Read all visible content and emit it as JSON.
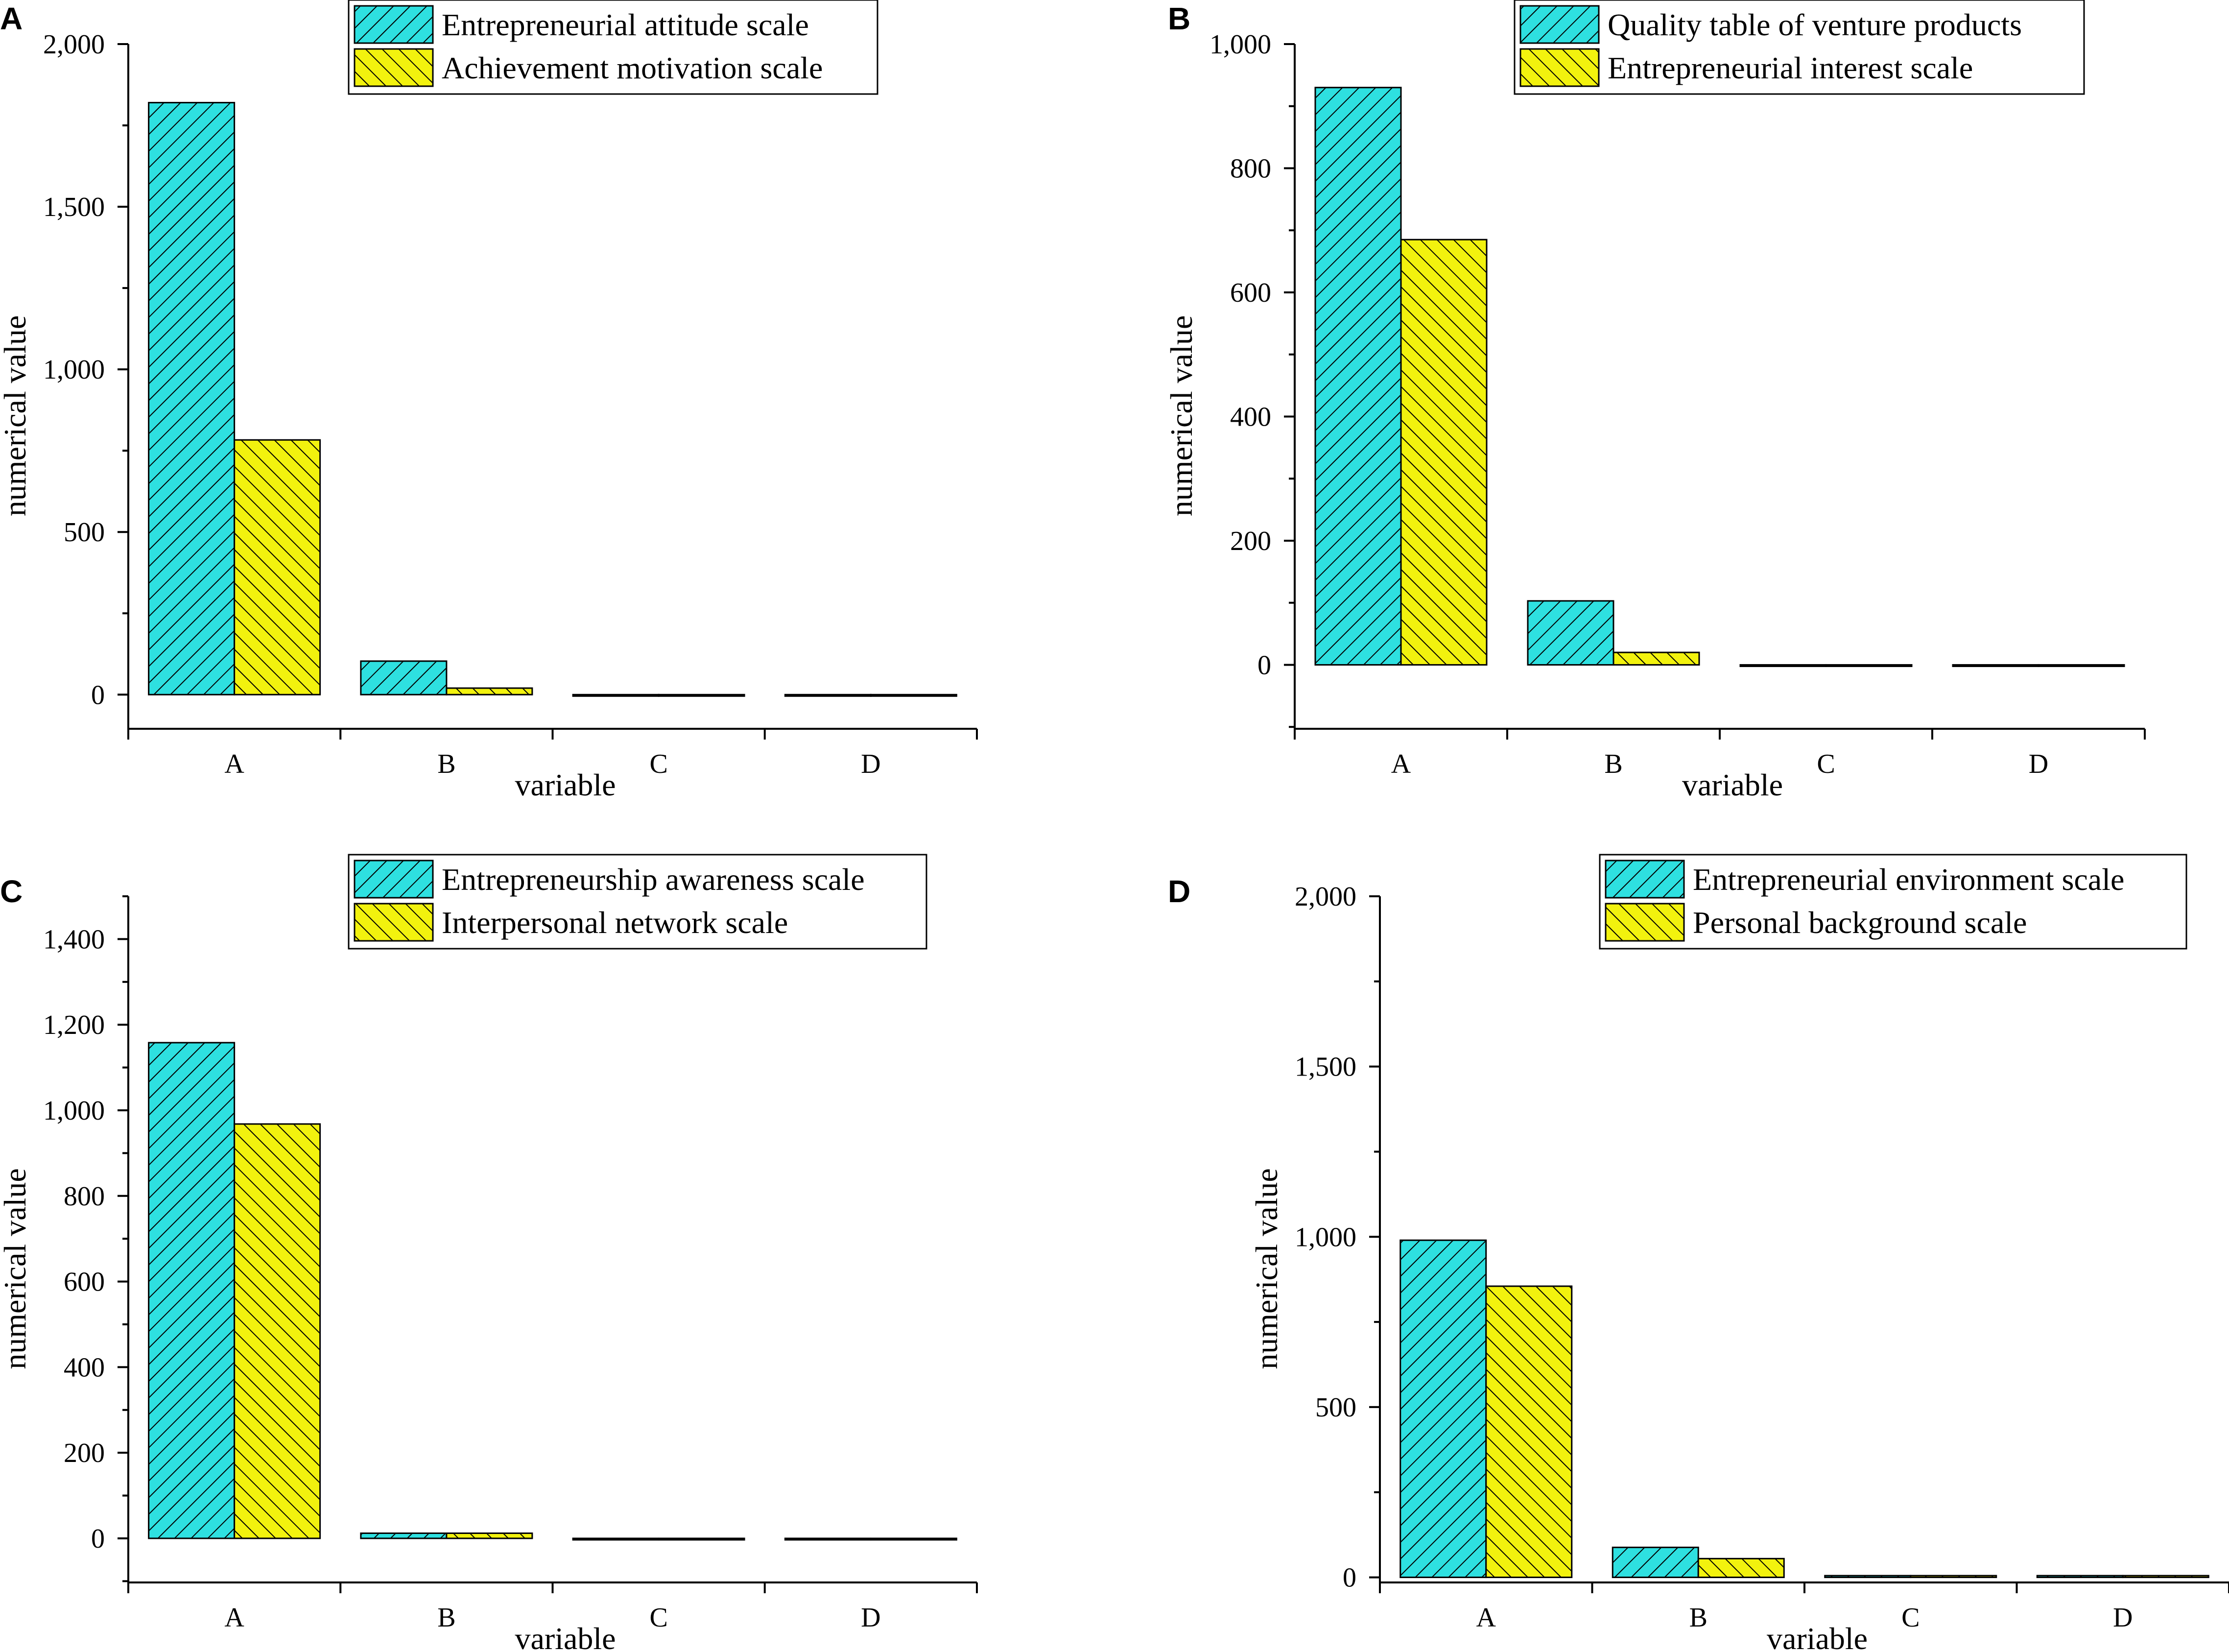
{
  "colors": {
    "series1": "#2ee0e0",
    "series2": "#f2f20e",
    "hatch": "#000000",
    "axis": "#000000"
  },
  "chart_data": [
    {
      "type": "bar",
      "panel": "A",
      "title": "",
      "xlabel": "variable",
      "ylabel": "numerical value",
      "categories": [
        "A",
        "B",
        "C",
        "D"
      ],
      "ylim": [
        -105,
        2000
      ],
      "yticks": [
        0,
        500,
        1000,
        1500,
        2000
      ],
      "ytick_labels": [
        "0",
        "500",
        "1,000",
        "1,500",
        "2,000"
      ],
      "legend_position": "top-center",
      "series": [
        {
          "name": "Entrepreneurial attitude scale",
          "values": [
            1820,
            103,
            0,
            0
          ]
        },
        {
          "name": "Achievement motivation scale",
          "values": [
            783,
            20,
            0,
            0
          ]
        }
      ]
    },
    {
      "type": "bar",
      "panel": "B",
      "title": "",
      "xlabel": "variable",
      "ylabel": "numerical value",
      "categories": [
        "A",
        "B",
        "C",
        "D"
      ],
      "ylim": [
        -103,
        1000
      ],
      "yticks": [
        0,
        200,
        400,
        600,
        800,
        1000
      ],
      "ytick_labels": [
        "0",
        "200",
        "400",
        "600",
        "800",
        "1,000"
      ],
      "legend_position": "top-right",
      "series": [
        {
          "name": "Quality table of venture products",
          "values": [
            930,
            103,
            0,
            0
          ]
        },
        {
          "name": "Entrepreneurial interest scale",
          "values": [
            685,
            20,
            0,
            0
          ]
        }
      ]
    },
    {
      "type": "bar",
      "panel": "C",
      "title": "",
      "xlabel": "variable",
      "ylabel": "numerical value",
      "categories": [
        "A",
        "B",
        "C",
        "D"
      ],
      "ylim": [
        -103,
        1500
      ],
      "yticks": [
        0,
        200,
        400,
        600,
        800,
        1000,
        1200,
        1400
      ],
      "ytick_labels": [
        "0",
        "200",
        "400",
        "600",
        "800",
        "1,000",
        "1,200",
        "1,400"
      ],
      "legend_position": "top-center",
      "series": [
        {
          "name": "Entrepreneurship awareness scale",
          "values": [
            1158,
            12,
            0,
            0
          ]
        },
        {
          "name": "Interpersonal network scale",
          "values": [
            968,
            12,
            0,
            0
          ]
        }
      ]
    },
    {
      "type": "bar",
      "panel": "D",
      "title": "",
      "xlabel": "variable",
      "ylabel": "numerical value",
      "categories": [
        "A",
        "B",
        "C",
        "D"
      ],
      "ylim": [
        -15,
        2000
      ],
      "yticks": [
        0,
        500,
        1000,
        1500,
        2000
      ],
      "ytick_labels": [
        "0",
        "500",
        "1,000",
        "1,500",
        "2,000"
      ],
      "legend_position": "top-right",
      "series": [
        {
          "name": "Entrepreneurial environment scale",
          "values": [
            990,
            88,
            5,
            5
          ]
        },
        {
          "name": "Personal background scale",
          "values": [
            855,
            55,
            5,
            5
          ]
        }
      ]
    }
  ]
}
